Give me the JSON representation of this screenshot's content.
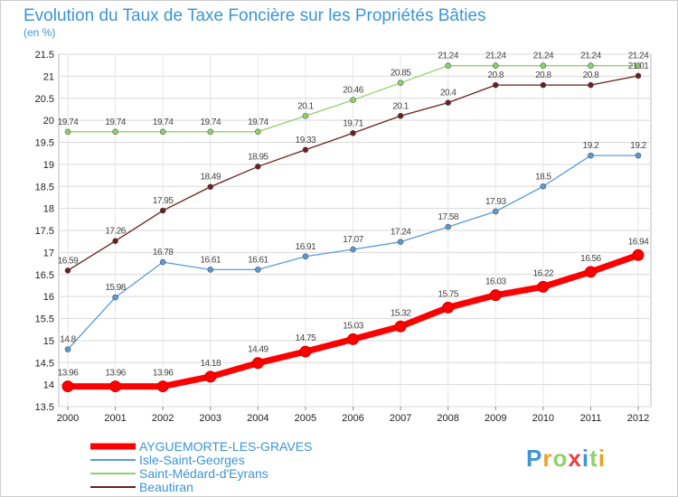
{
  "chart_data": {
    "type": "line",
    "title": "Evolution du Taux de Taxe Foncière sur les Propriétés Bâties",
    "subtitle": "(en %)",
    "x": [
      "2000",
      "2001",
      "2002",
      "2003",
      "2004",
      "2005",
      "2006",
      "2007",
      "2008",
      "2009",
      "2010",
      "2011",
      "2012"
    ],
    "ylim": [
      13.5,
      21.5
    ],
    "yticks": [
      "13.5",
      "14",
      "14.5",
      "15",
      "15.5",
      "16",
      "16.5",
      "17",
      "17.5",
      "18",
      "18.5",
      "19",
      "19.5",
      "20",
      "20.5",
      "21",
      "21.5"
    ],
    "grid": true,
    "legend_position": "bottom-left",
    "series": [
      {
        "name": "AYGUEMORTE-LES-GRAVES",
        "color": "#ff0000",
        "values": [
          13.96,
          13.96,
          13.96,
          14.18,
          14.49,
          14.75,
          15.03,
          15.32,
          15.75,
          16.03,
          16.22,
          16.56,
          16.94
        ],
        "labels": [
          "13.96",
          "13.96",
          "13.96",
          "14.18",
          "14.49",
          "14.75",
          "15.03",
          "15.32",
          "15.75",
          "16.03",
          "16.22",
          "16.56",
          "16.94"
        ]
      },
      {
        "name": "Isle-Saint-Georges",
        "color": "#5b9bd5",
        "values": [
          14.8,
          15.98,
          16.78,
          16.61,
          16.61,
          16.91,
          17.07,
          17.24,
          17.58,
          17.93,
          18.5,
          19.2,
          19.2
        ],
        "labels": [
          "14.8",
          "15.98",
          "16.78",
          "16.61",
          "16.61",
          "16.91",
          "17.07",
          "17.24",
          "17.58",
          "17.93",
          "18.5",
          "19.2",
          "19.2"
        ]
      },
      {
        "name": "Saint-Médard-d'Eyrans",
        "color": "#8ed26a",
        "values": [
          19.74,
          19.74,
          19.74,
          19.74,
          19.74,
          20.1,
          20.46,
          20.85,
          21.24,
          21.24,
          21.24,
          21.24,
          21.24
        ],
        "labels": [
          "19.74",
          "19.74",
          "19.74",
          "19.74",
          "19.74",
          "20.1",
          "20.46",
          "20.85",
          "21.24",
          "21.24",
          "21.24",
          "21.24",
          "21.24"
        ]
      },
      {
        "name": "Beautiran",
        "color": "#6b1f1f",
        "values": [
          16.59,
          17.26,
          17.95,
          18.49,
          18.95,
          19.33,
          19.71,
          20.1,
          20.4,
          20.8,
          20.8,
          20.8,
          21.01
        ],
        "labels": [
          "16.59",
          "17.26",
          "17.95",
          "18.49",
          "18.95",
          "19.33",
          "19.71",
          "20.1",
          "20.4",
          "20.8",
          "20.8",
          "20.8",
          "21.01"
        ]
      }
    ]
  },
  "logo": {
    "letters": [
      "P",
      "r",
      "o",
      "x",
      "i",
      "t",
      "i"
    ],
    "colors": [
      "#3c95d4",
      "#f0a020",
      "#8ed26a",
      "#e84040",
      "#3c95d4",
      "#8ed26a",
      "#f0a020"
    ]
  }
}
